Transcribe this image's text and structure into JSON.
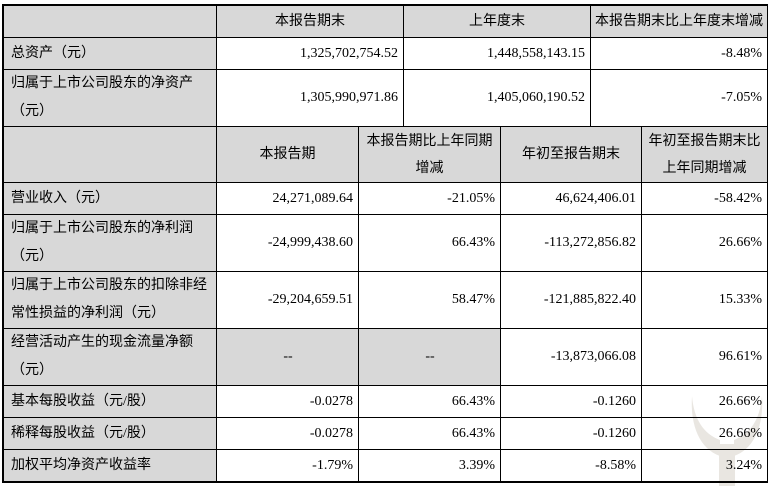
{
  "document": {
    "type": "financial-summary-table",
    "currency_note": "元"
  },
  "colors": {
    "cell_shade": "#d8d8d8",
    "border": "#000000",
    "watermark": "#e9e6e1"
  },
  "section1": {
    "headers": [
      "",
      "本报告期末",
      "上年度末",
      "本报告期末比上年度末增减"
    ],
    "rows": [
      {
        "label": "总资产（元）",
        "values": [
          "1,325,702,754.52",
          "1,448,558,143.15",
          "-8.48%"
        ]
      },
      {
        "label": "归属于上市公司股东的净资产（元）",
        "values": [
          "1,305,990,971.86",
          "1,405,060,190.52",
          "-7.05%"
        ]
      }
    ]
  },
  "section2": {
    "headers": [
      "",
      "本报告期",
      "本报告期比上年同期增减",
      "年初至报告期末",
      "年初至报告期末比上年同期增减"
    ],
    "rows": [
      {
        "label": "营业收入（元）",
        "values": [
          "24,271,089.64",
          "-21.05%",
          "46,624,406.01",
          "-58.42%"
        ]
      },
      {
        "label": "归属于上市公司股东的净利润（元）",
        "values": [
          "-24,999,438.60",
          "66.43%",
          "-113,272,856.82",
          "26.66%"
        ]
      },
      {
        "label": "归属于上市公司股东的扣除非经常性损益的净利润（元）",
        "values": [
          "-29,204,659.51",
          "58.47%",
          "-121,885,822.40",
          "15.33%"
        ]
      },
      {
        "label": "经营活动产生的现金流量净额（元）",
        "values": [
          "--",
          "--",
          "-13,873,066.08",
          "96.61%"
        ]
      },
      {
        "label": "基本每股收益（元/股）",
        "values": [
          "-0.0278",
          "66.43%",
          "-0.1260",
          "26.66%"
        ]
      },
      {
        "label": "稀释每股收益（元/股）",
        "values": [
          "-0.0278",
          "66.43%",
          "-0.1260",
          "26.66%"
        ]
      },
      {
        "label": "加权平均净资产收益率",
        "values": [
          "-1.79%",
          "3.39%",
          "-8.58%",
          "3.24%"
        ]
      }
    ]
  },
  "watermark_name": "brand-logo-watermark"
}
